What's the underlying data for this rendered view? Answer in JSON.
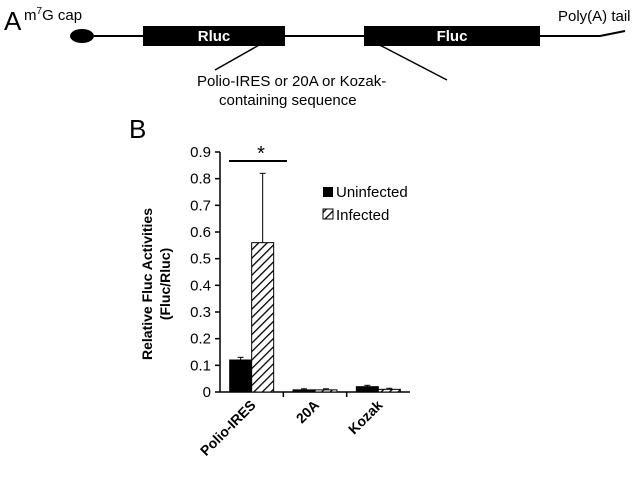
{
  "panel_a": {
    "letter": "A",
    "cap_label_prefix": "m",
    "cap_label_sup": "7",
    "cap_label_suffix": "G cap",
    "rluc_label": "Rluc",
    "fluc_label": "Fluc",
    "polya_label": "Poly(A) tail",
    "insert_label_line1": "Polio-IRES or 20A or Kozak-",
    "insert_label_line2": "containing sequence"
  },
  "panel_b": {
    "letter": "B"
  },
  "chart_data": {
    "type": "bar",
    "categories": [
      "Polio-IRES",
      "20A",
      "Kozak"
    ],
    "series": [
      {
        "name": "Uninfected",
        "values": [
          0.12,
          0.008,
          0.02
        ],
        "errors": [
          0.01,
          0.004,
          0.005
        ],
        "fill": "solid-black"
      },
      {
        "name": "Infected",
        "values": [
          0.56,
          0.008,
          0.01
        ],
        "errors": [
          0.26,
          0.004,
          0.004
        ],
        "fill": "diagonal-hatch"
      }
    ],
    "ylabel_line1": "Relative Fluc Activities",
    "ylabel_line2": "(Fluc/Rluc)",
    "ylim": [
      0,
      0.9
    ],
    "yticks": [
      "0",
      "0.1",
      "0.2",
      "0.3",
      "0.4",
      "0.5",
      "0.6",
      "0.7",
      "0.8",
      "0.9"
    ],
    "annotation": "*",
    "legend_position": "top-right",
    "grid": false
  }
}
